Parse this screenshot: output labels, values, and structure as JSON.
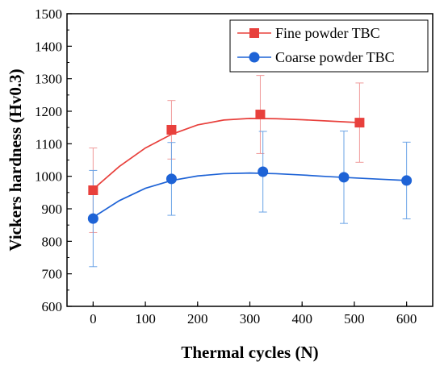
{
  "chart_data": {
    "type": "scatter",
    "xlabel": "Thermal cycles (N)",
    "ylabel": "Vickers hardness (Hv0.3)",
    "xlim": [
      -50,
      650
    ],
    "ylim": [
      600,
      1500
    ],
    "xticks": [
      0,
      100,
      200,
      300,
      400,
      500,
      600
    ],
    "yticks": [
      600,
      700,
      800,
      900,
      1000,
      1100,
      1200,
      1300,
      1400,
      1500
    ],
    "grid": false,
    "legend_position": "top-right",
    "series": [
      {
        "name": "Fine powder TBC",
        "marker": "square",
        "color": "#e8403c",
        "errorbar_color": "#f09a9a",
        "x": [
          0,
          150,
          320,
          510
        ],
        "y": [
          957,
          1143,
          1190,
          1165
        ],
        "error": [
          130,
          90,
          120,
          122
        ],
        "fit_curve": {
          "x": [
            0,
            50,
            100,
            150,
            200,
            250,
            300,
            350,
            400,
            450,
            510
          ],
          "y": [
            960,
            1030,
            1087,
            1129,
            1158,
            1173,
            1178,
            1177,
            1174,
            1170,
            1165
          ]
        }
      },
      {
        "name": "Coarse powder TBC",
        "marker": "circle",
        "color": "#1e63d6",
        "errorbar_color": "#6aa3e6",
        "x": [
          0,
          150,
          325,
          480,
          600
        ],
        "y": [
          870,
          992,
          1014,
          997,
          987
        ],
        "error": [
          148,
          112,
          124,
          142,
          118
        ],
        "fit_curve": {
          "x": [
            0,
            50,
            100,
            150,
            200,
            250,
            300,
            350,
            400,
            450,
            500,
            550,
            600
          ],
          "y": [
            874,
            925,
            963,
            987,
            1001,
            1008,
            1010,
            1008,
            1004,
            999,
            995,
            991,
            987
          ]
        }
      }
    ]
  }
}
